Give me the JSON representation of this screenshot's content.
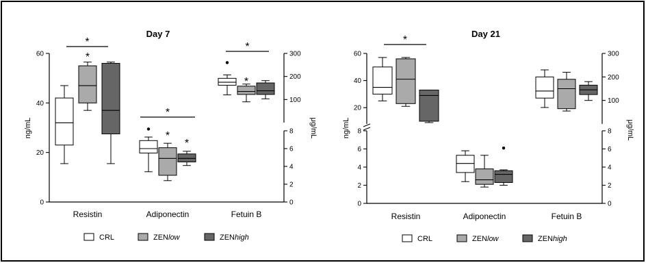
{
  "colors": {
    "CRL": "#ffffff",
    "ZENlow": "#aaaaaa",
    "ZENhigh": "#666666",
    "stroke": "#000000"
  },
  "legend": [
    {
      "key": "CRL",
      "label_pre": "CRL",
      "label_it": ""
    },
    {
      "key": "ZENlow",
      "label_pre": "ZEN",
      "label_it": "low"
    },
    {
      "key": "ZENhigh",
      "label_pre": "ZEN",
      "label_it": "high"
    }
  ],
  "chart_data": [
    {
      "type": "box",
      "title": "Day 7",
      "ylabel_left": "ng/mL",
      "ylabel_right": "μg/mL",
      "categories": [
        "Resistin",
        "Adiponectin",
        "Fetuin B"
      ],
      "scales": {
        "resistin_left": {
          "ylim": [
            0,
            60
          ],
          "ticks": [
            0,
            20,
            40,
            60
          ]
        },
        "adiponectin_left": {
          "ylim": [
            0,
            60
          ],
          "ticks": [
            0,
            20,
            40,
            60
          ]
        },
        "adiponectin_right": {
          "ylim": [
            0,
            8
          ],
          "ticks": [
            0,
            2,
            4,
            6,
            8
          ]
        },
        "fetuin_right": {
          "ylim": [
            0,
            300
          ],
          "ticks": [
            100,
            200,
            300
          ]
        }
      },
      "boxes": [
        {
          "category": "Resistin",
          "group": "CRL",
          "scale": "resistin_left",
          "whisker_low": 15.5,
          "q1": 23,
          "median": 32,
          "q3": 42,
          "whisker_high": 47,
          "outliers": []
        },
        {
          "category": "Resistin",
          "group": "ZENlow",
          "scale": "resistin_left",
          "whisker_low": 37,
          "q1": 40,
          "median": 47,
          "q3": 55,
          "whisker_high": 56.5,
          "outliers": []
        },
        {
          "category": "Resistin",
          "group": "ZENhigh",
          "scale": "resistin_left",
          "whisker_low": 15.5,
          "q1": 27.5,
          "median": 37,
          "q3": 56,
          "whisker_high": 56.5,
          "outliers": []
        },
        {
          "category": "Adiponectin",
          "group": "CRL",
          "scale": "adiponectin_right",
          "whisker_low": 3.4,
          "q1": 5.5,
          "median": 6.0,
          "q3": 6.9,
          "whisker_high": 7.3,
          "outliers": [
            8.2
          ]
        },
        {
          "category": "Adiponectin",
          "group": "ZENlow",
          "scale": "adiponectin_right",
          "whisker_low": 2.4,
          "q1": 3.0,
          "median": 4.9,
          "q3": 6.1,
          "whisker_high": 6.6,
          "outliers": []
        },
        {
          "category": "Adiponectin",
          "group": "ZENhigh",
          "scale": "adiponectin_right",
          "whisker_low": 4.1,
          "q1": 4.5,
          "median": 4.9,
          "q3": 5.4,
          "whisker_high": 5.7,
          "outliers": []
        },
        {
          "category": "Fetuin B",
          "group": "CRL",
          "scale": "fetuin_right",
          "whisker_low": 120,
          "q1": 162,
          "median": 175,
          "q3": 192,
          "whisker_high": 207,
          "outliers": [
            260
          ]
        },
        {
          "category": "Fetuin B",
          "group": "ZENlow",
          "scale": "fetuin_right",
          "whisker_low": 90,
          "q1": 122,
          "median": 135,
          "q3": 158,
          "whisker_high": 167,
          "outliers": []
        },
        {
          "category": "Fetuin B",
          "group": "ZENhigh",
          "scale": "fetuin_right",
          "whisker_low": 103,
          "q1": 122,
          "median": 138,
          "q3": 172,
          "whisker_high": 182,
          "outliers": []
        }
      ],
      "significance": [
        {
          "category": "Resistin",
          "bracket": true,
          "star_over": "ZENlow",
          "label": "*"
        },
        {
          "category": "Adiponectin",
          "bracket": true,
          "star_over": [
            "ZENlow",
            "ZENhigh"
          ],
          "label": "*"
        },
        {
          "category": "Fetuin B",
          "bracket": true,
          "star_over": "ZENlow",
          "label": "*"
        }
      ]
    },
    {
      "type": "box",
      "title": "Day 21",
      "ylabel_left": "ng/mL",
      "ylabel_right": "μg/mL",
      "categories": [
        "Resistin",
        "Adiponectin",
        "Fetuin B"
      ],
      "broken_axis": true,
      "scales": {
        "resistin_left": {
          "ylim": [
            0,
            60
          ],
          "ticks": [
            20,
            40,
            60
          ]
        },
        "adiponectin_left": {
          "ylim": [
            0,
            8
          ],
          "ticks": [
            0,
            2,
            4,
            6,
            8
          ]
        },
        "adiponectin_right": {
          "ylim": [
            0,
            8
          ],
          "ticks": [
            0,
            2,
            4,
            6,
            8
          ]
        },
        "fetuin_right": {
          "ylim": [
            0,
            300
          ],
          "ticks": [
            100,
            200,
            300
          ]
        }
      },
      "boxes": [
        {
          "category": "Resistin",
          "group": "CRL",
          "scale": "resistin_left",
          "whisker_low": 25,
          "q1": 30,
          "median": 35,
          "q3": 50,
          "whisker_high": 57,
          "outliers": []
        },
        {
          "category": "Resistin",
          "group": "ZENlow",
          "scale": "resistin_left",
          "whisker_low": 21,
          "q1": 23,
          "median": 41,
          "q3": 56,
          "whisker_high": 57,
          "outliers": []
        },
        {
          "category": "Resistin",
          "group": "ZENhigh",
          "scale": "resistin_left",
          "whisker_low": 9,
          "q1": 10,
          "median": 29,
          "q3": 33,
          "whisker_high": 33,
          "outliers": []
        },
        {
          "category": "Adiponectin",
          "group": "CRL",
          "scale": "adiponectin_left",
          "whisker_low": 2.4,
          "q1": 3.4,
          "median": 4.4,
          "q3": 5.3,
          "whisker_high": 5.8,
          "outliers": []
        },
        {
          "category": "Adiponectin",
          "group": "ZENlow",
          "scale": "adiponectin_left",
          "whisker_low": 1.8,
          "q1": 2.1,
          "median": 2.6,
          "q3": 3.8,
          "whisker_high": 5.3,
          "outliers": []
        },
        {
          "category": "Adiponectin",
          "group": "ZENhigh",
          "scale": "adiponectin_left",
          "whisker_low": 2.0,
          "q1": 2.3,
          "median": 3.2,
          "q3": 3.6,
          "whisker_high": 3.7,
          "outliers": [
            6.1
          ]
        },
        {
          "category": "Fetuin B",
          "group": "CRL",
          "scale": "fetuin_right",
          "whisker_low": 70,
          "q1": 110,
          "median": 140,
          "q3": 200,
          "whisker_high": 230,
          "outliers": []
        },
        {
          "category": "Fetuin B",
          "group": "ZENlow",
          "scale": "fetuin_right",
          "whisker_low": 55,
          "q1": 65,
          "median": 150,
          "q3": 190,
          "whisker_high": 220,
          "outliers": []
        },
        {
          "category": "Fetuin B",
          "group": "ZENhigh",
          "scale": "fetuin_right",
          "whisker_low": 100,
          "q1": 125,
          "median": 145,
          "q3": 165,
          "whisker_high": 180,
          "outliers": []
        }
      ],
      "significance": [
        {
          "category": "Resistin",
          "bracket": true,
          "label": "*"
        }
      ]
    }
  ]
}
